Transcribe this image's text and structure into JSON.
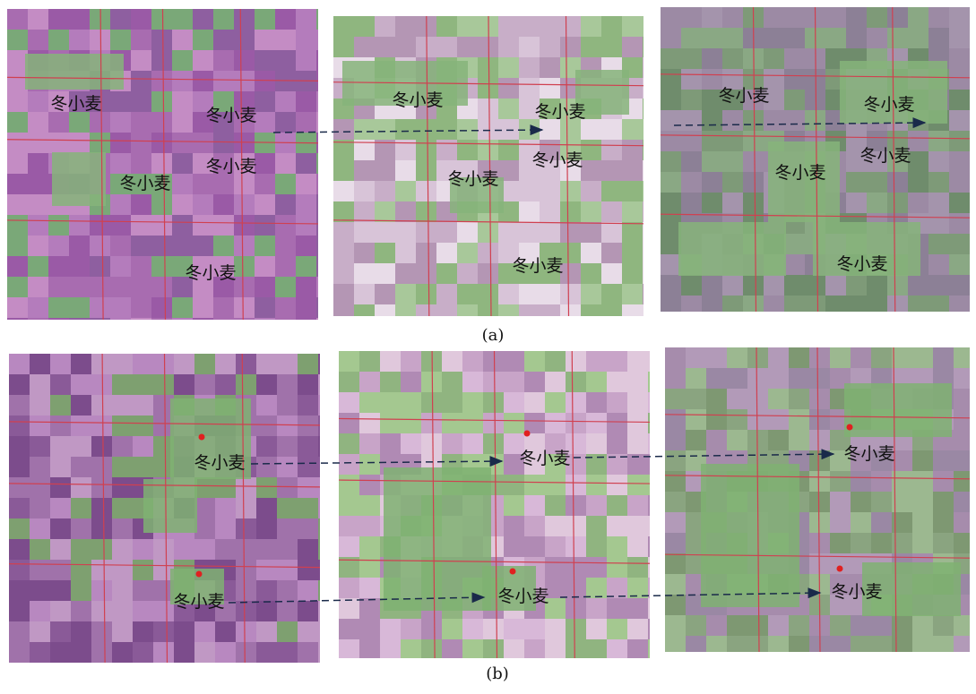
{
  "figure": {
    "rows": [
      {
        "caption": "(a)",
        "panels": [
          {
            "labels": [
              "冬小麦",
              "冬小麦",
              "冬小麦",
              "冬小麦",
              "冬小麦"
            ]
          },
          {
            "labels": [
              "冬小麦",
              "冬小麦",
              "冬小麦",
              "冬小麦",
              "冬小麦"
            ]
          },
          {
            "labels": [
              "冬小麦",
              "冬小麦",
              "冬小麦",
              "冬小麦",
              "冬小麦"
            ]
          }
        ]
      },
      {
        "caption": "(b)",
        "panels": [
          {
            "labels": [
              "冬小麦",
              "冬小麦"
            ]
          },
          {
            "labels": [
              "冬小麦",
              "冬小麦"
            ]
          },
          {
            "labels": [
              "冬小麦",
              "冬小麦"
            ]
          }
        ]
      }
    ]
  }
}
